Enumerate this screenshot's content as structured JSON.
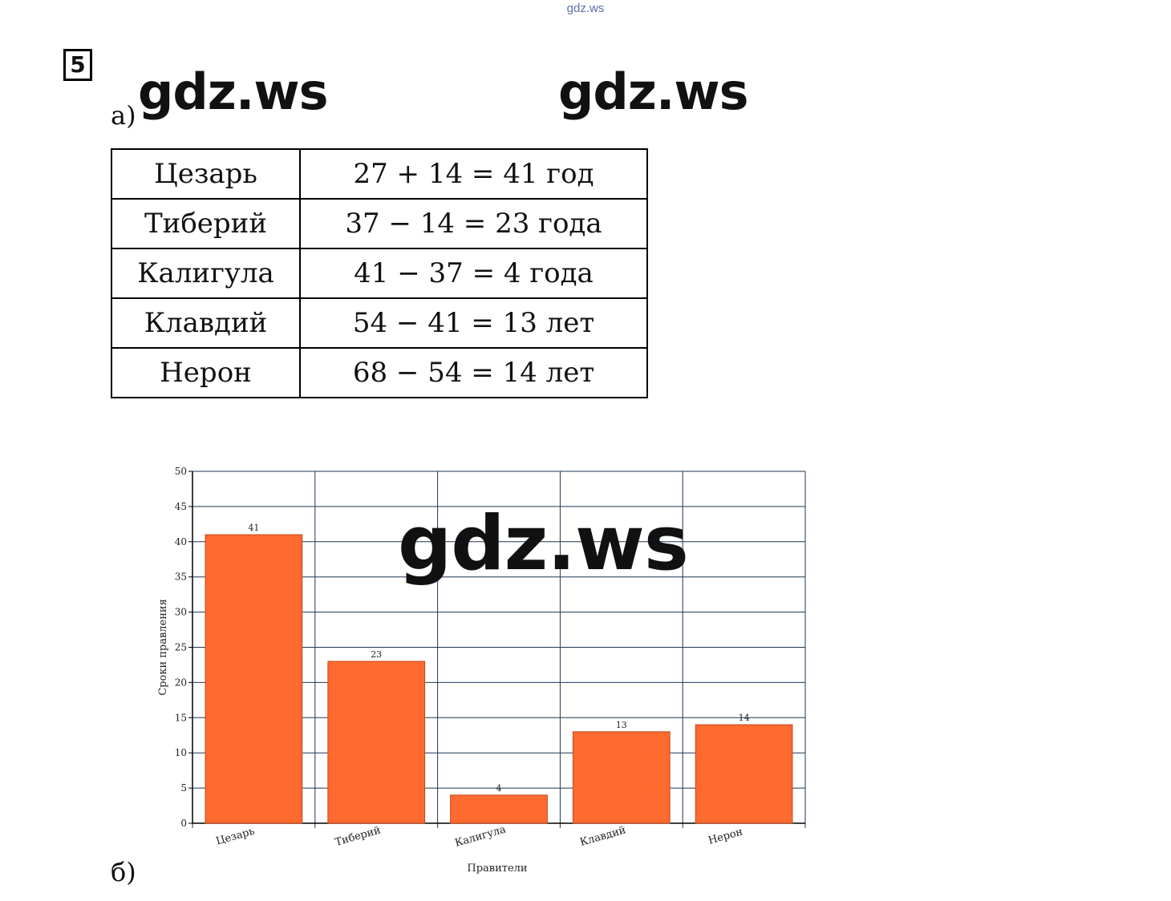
{
  "watermark": {
    "top": "gdz.ws",
    "big": "gdz.ws"
  },
  "task": {
    "number": "5",
    "part_a": "а)",
    "part_b": "б)"
  },
  "table": [
    {
      "name": "Цезарь",
      "calc": "27 + 14 = 41 год"
    },
    {
      "name": "Тиберий",
      "calc": "37 − 14 = 23 года"
    },
    {
      "name": "Калигула",
      "calc": "41 − 37 = 4 года"
    },
    {
      "name": "Клавдий",
      "calc": "54 − 41 = 13 лет"
    },
    {
      "name": "Нерон",
      "calc": "68 − 54 = 14 лет"
    }
  ],
  "chart_data": {
    "type": "bar",
    "categories": [
      "Цезарь",
      "Тиберий",
      "Калигула",
      "Клавдий",
      "Нерон"
    ],
    "values": [
      41,
      23,
      4,
      13,
      14
    ],
    "xlabel": "Правители",
    "ylabel": "Сроки правления",
    "ylim": [
      0,
      50
    ],
    "yticks": [
      0,
      5,
      10,
      15,
      20,
      25,
      30,
      35,
      40,
      45,
      50
    ],
    "grid": true,
    "bar_color": "#ff6a2e",
    "grid_color": "#1f3556"
  }
}
